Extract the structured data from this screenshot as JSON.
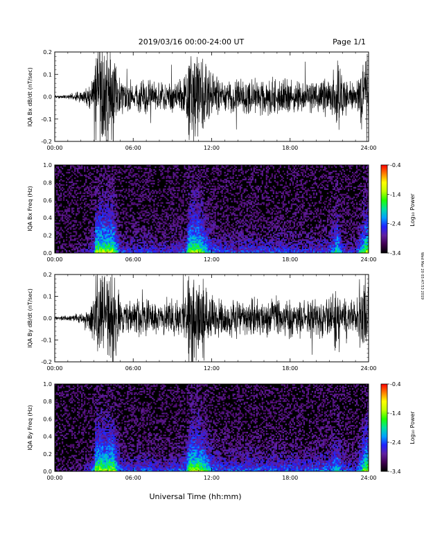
{
  "header": {
    "date_range": "2019/03/16  00:00-24:00 UT",
    "page": "Page 1/1"
  },
  "footer": {
    "xlabel": "Universal Time (hh:mm)"
  },
  "side_note": "Wed Mar 20 03:47:53 2019",
  "chart_data": [
    {
      "type": "line",
      "ylabel": "IQA Bx dB/dt (nT/sec)",
      "xlabel": "",
      "x_ticks": [
        "00:00",
        "06:00",
        "12:00",
        "18:00",
        "24:00"
      ],
      "xlim": [
        0,
        24
      ],
      "ylim": [
        -0.2,
        0.2
      ],
      "y_ticks": [
        "0.2",
        "0.1",
        "0.0",
        "-0.1",
        "-0.2"
      ],
      "y_tick_values": [
        0.2,
        0.1,
        0.0,
        -0.1,
        -0.2
      ],
      "envelope": {
        "hours": [
          0,
          1,
          2,
          2.5,
          3,
          3.1,
          3.5,
          4.0,
          4.5,
          5,
          6,
          7,
          8,
          9,
          10,
          10.3,
          10.5,
          11.0,
          11.5,
          12,
          13,
          14,
          15,
          16,
          17,
          18,
          19,
          20,
          21,
          21.6,
          22,
          22.5,
          23,
          23.8,
          24
        ],
        "amplitude": [
          0.008,
          0.012,
          0.03,
          0.05,
          0.1,
          0.25,
          0.25,
          0.25,
          0.25,
          0.09,
          0.08,
          0.09,
          0.07,
          0.08,
          0.1,
          0.25,
          0.25,
          0.25,
          0.18,
          0.12,
          0.09,
          0.09,
          0.1,
          0.09,
          0.1,
          0.09,
          0.08,
          0.09,
          0.1,
          0.2,
          0.1,
          0.08,
          0.07,
          0.25,
          0.25
        ]
      }
    },
    {
      "type": "heatmap",
      "ylabel": "IQA Bx Freq (Hz)",
      "x_ticks": [
        "00:00",
        "06:00",
        "12:00",
        "18:00",
        "24:00"
      ],
      "xlim": [
        0,
        24
      ],
      "ylim": [
        0,
        1.0
      ],
      "y_ticks": [
        "1.0",
        "0.8",
        "0.6",
        "0.4",
        "0.2",
        "0.0"
      ],
      "y_tick_values": [
        1.0,
        0.8,
        0.6,
        0.4,
        0.2,
        0.0
      ],
      "colorbar": {
        "label": "Log₁₀ Power",
        "ticks": [
          "-0.4",
          "-1.4",
          "-2.4",
          "-3.4"
        ],
        "tick_values": [
          -0.4,
          -1.4,
          -2.4,
          -3.4
        ],
        "range": [
          -3.4,
          -0.4
        ],
        "colors": [
          "#000000",
          "#400050",
          "#6020a0",
          "#2020ff",
          "#00a0ff",
          "#00e0a0",
          "#20ff00",
          "#c0ff00",
          "#ffff00",
          "#ff8000",
          "#ff0000"
        ]
      }
    },
    {
      "type": "line",
      "ylabel": "IQA By dB/dt (nT/sec)",
      "xlabel": "",
      "x_ticks": [
        "00:00",
        "06:00",
        "12:00",
        "18:00",
        "24:00"
      ],
      "xlim": [
        0,
        24
      ],
      "ylim": [
        -0.2,
        0.2
      ],
      "y_ticks": [
        "0.2",
        "0.1",
        "0.0",
        "-0.1",
        "-0.2"
      ],
      "y_tick_values": [
        0.2,
        0.1,
        0.0,
        -0.1,
        -0.2
      ],
      "envelope": {
        "hours": [
          0,
          1,
          2,
          2.5,
          3,
          3.1,
          3.5,
          4.0,
          4.5,
          5,
          6,
          7,
          8,
          9,
          10,
          10.3,
          10.5,
          11.0,
          11.5,
          12,
          13,
          14,
          15,
          16,
          17,
          18,
          19,
          20,
          21,
          21.6,
          22,
          22.5,
          23,
          23.8,
          24
        ],
        "amplitude": [
          0.01,
          0.015,
          0.03,
          0.06,
          0.12,
          0.25,
          0.25,
          0.25,
          0.25,
          0.1,
          0.09,
          0.1,
          0.08,
          0.09,
          0.12,
          0.25,
          0.25,
          0.25,
          0.2,
          0.13,
          0.1,
          0.1,
          0.11,
          0.1,
          0.11,
          0.11,
          0.1,
          0.11,
          0.12,
          0.18,
          0.11,
          0.09,
          0.08,
          0.25,
          0.25
        ]
      }
    },
    {
      "type": "heatmap",
      "ylabel": "IQA By Freq (Hz)",
      "x_ticks": [
        "00:00",
        "06:00",
        "12:00",
        "18:00",
        "24:00"
      ],
      "xlim": [
        0,
        24
      ],
      "ylim": [
        0,
        1.0
      ],
      "y_ticks": [
        "1.0",
        "0.8",
        "0.6",
        "0.4",
        "0.2",
        "0.0"
      ],
      "y_tick_values": [
        1.0,
        0.8,
        0.6,
        0.4,
        0.2,
        0.0
      ],
      "colorbar": {
        "label": "Log₁₀ Power",
        "ticks": [
          "-0.4",
          "-1.4",
          "-2.4",
          "-3.4"
        ],
        "tick_values": [
          -0.4,
          -1.4,
          -2.4,
          -3.4
        ],
        "range": [
          -3.4,
          -0.4
        ],
        "colors": [
          "#000000",
          "#400050",
          "#6020a0",
          "#2020ff",
          "#00a0ff",
          "#00e0a0",
          "#20ff00",
          "#c0ff00",
          "#ffff00",
          "#ff8000",
          "#ff0000"
        ]
      }
    }
  ]
}
